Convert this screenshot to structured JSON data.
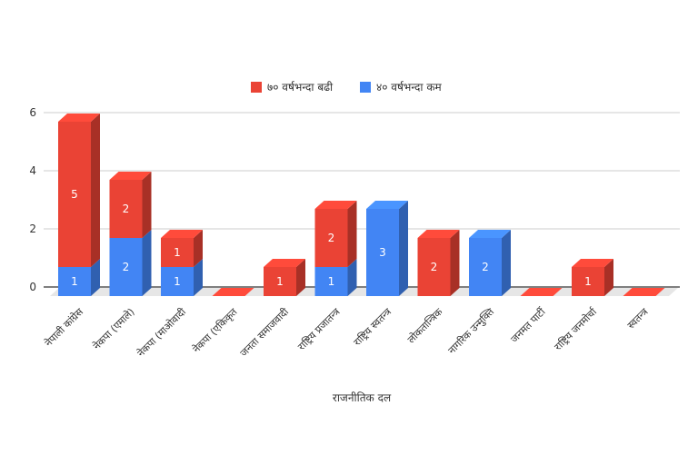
{
  "chart_data": {
    "type": "bar",
    "stacked": true,
    "style": "3d",
    "categories": [
      "नेपाली कांग्रेस",
      "नेकपा (एमाले)",
      "नेकपा (माओवादी",
      "नेकपा (एकिकृत",
      "जनता समाजवादी",
      "राष्ट्रिय प्रजातन्त्र",
      "राष्ट्रिय स्वतन्त्र",
      "लोकतान्त्रिक",
      "नागरिक उन्मुक्ति",
      "जनमत पार्टी",
      "राष्ट्रिय जनमोर्चा",
      "स्वतन्त्र"
    ],
    "series": [
      {
        "name": "४० वर्षभन्दा कम",
        "color": "#4285f4",
        "values": [
          1,
          2,
          1,
          0,
          0,
          1,
          3,
          0,
          2,
          0,
          0,
          0
        ]
      },
      {
        "name": "७० वर्षभन्दा बढी",
        "color": "#ea4335",
        "values": [
          5,
          2,
          1,
          0,
          1,
          2,
          0,
          2,
          0,
          0,
          1,
          0
        ]
      }
    ],
    "xlabel": "राजनीतिक दल",
    "ylabel": "",
    "ylim": [
      0,
      6
    ],
    "yticks": [
      0,
      2,
      4,
      6
    ],
    "legend_position": "top",
    "grid": true
  }
}
